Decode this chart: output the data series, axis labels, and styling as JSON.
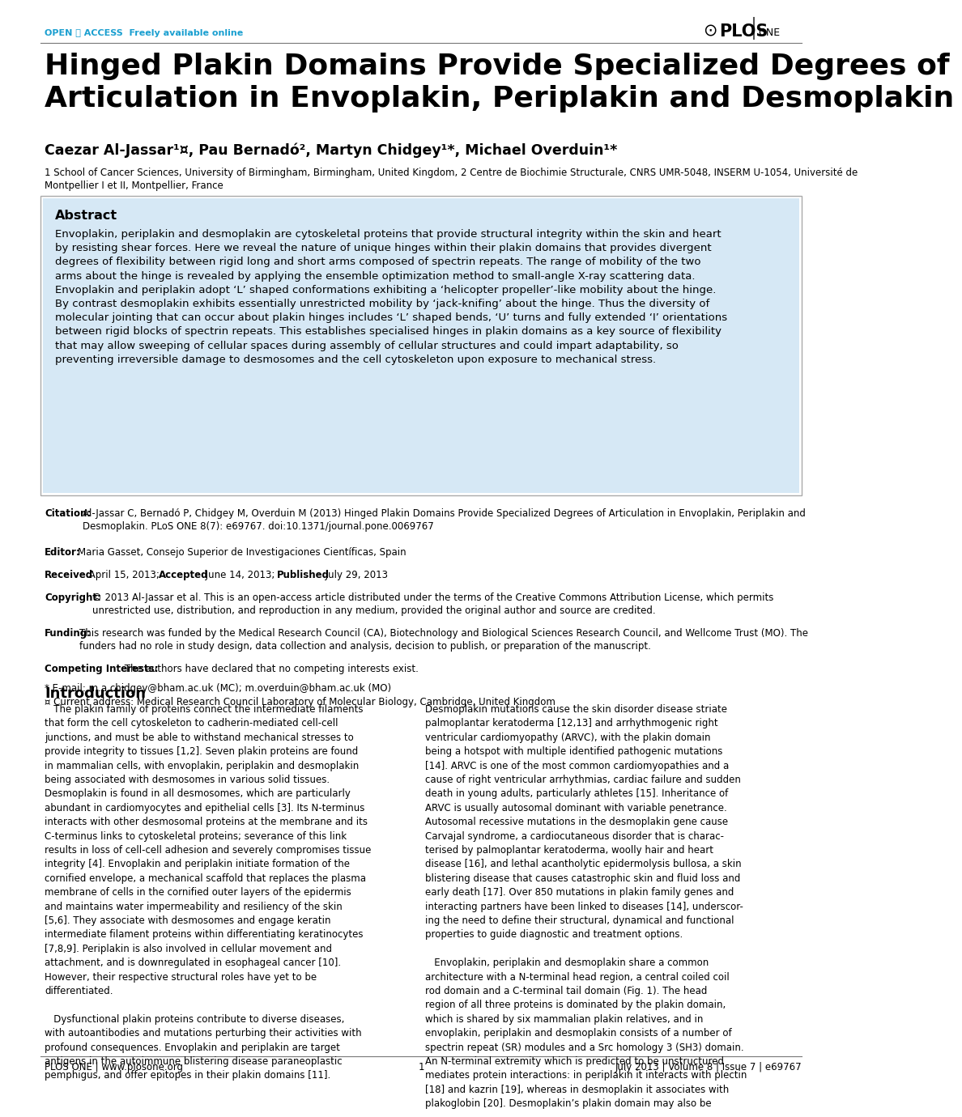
{
  "page_bg": "#ffffff",
  "open_access_text": "OPEN ⚿ ACCESS  Freely available online",
  "open_access_color": "#1a9fd0",
  "title": "Hinged Plakin Domains Provide Specialized Degrees of\nArticulation in Envoplakin, Periplakin and Desmoplakin",
  "title_fontsize": 26,
  "authors": "Caezar Al-Jassar¹¤, Pau Bernadó², Martyn Chidgey¹*, Michael Overduin¹*",
  "authors_fontsize": 12.5,
  "affiliation": "1 School of Cancer Sciences, University of Birmingham, Birmingham, United Kingdom, 2 Centre de Biochimie Structurale, CNRS UMR-5048, INSERM U-1054, Université de\nMontpellier I et II, Montpellier, France",
  "affiliation_fontsize": 8.5,
  "abstract_bg": "#d6e8f5",
  "abstract_title": "Abstract",
  "abstract_text": "Envoplakin, periplakin and desmoplakin are cytoskeletal proteins that provide structural integrity within the skin and heart\nby resisting shear forces. Here we reveal the nature of unique hinges within their plakin domains that provides divergent\ndegrees of flexibility between rigid long and short arms composed of spectrin repeats. The range of mobility of the two\narms about the hinge is revealed by applying the ensemble optimization method to small-angle X-ray scattering data.\nEnvoplakin and periplakin adopt ‘L’ shaped conformations exhibiting a ‘helicopter propeller’-like mobility about the hinge.\nBy contrast desmoplakin exhibits essentially unrestricted mobility by ‘jack-knifing’ about the hinge. Thus the diversity of\nmolecular jointing that can occur about plakin hinges includes ‘L’ shaped bends, ‘U’ turns and fully extended ‘I’ orientations\nbetween rigid blocks of spectrin repeats. This establishes specialised hinges in plakin domains as a key source of flexibility\nthat may allow sweeping of cellular spaces during assembly of cellular structures and could impart adaptability, so\npreventing irreversible damage to desmosomes and the cell cytoskeleton upon exposure to mechanical stress.",
  "abstract_text_fontsize": 9.5,
  "citation_label": "Citation:",
  "citation_text": "Al-Jassar C, Bernadó P, Chidgey M, Overduin M (2013) Hinged Plakin Domains Provide Specialized Degrees of Articulation in Envoplakin, Periplakin and\nDesmoplakin. PLoS ONE 8(7): e69767. doi:10.1371/journal.pone.0069767",
  "editor_label": "Editor:",
  "editor_text": "Maria Gasset, Consejo Superior de Investigaciones Científicas, Spain",
  "received_label": "Received",
  "received_text": " April 15, 2013;",
  "accepted_label": "Accepted",
  "accepted_text": " June 14, 2013;",
  "published_label": "Published",
  "published_text": " July 29, 2013",
  "copyright_label": "Copyright:",
  "copyright_text": "© 2013 Al-Jassar et al. This is an open-access article distributed under the terms of the Creative Commons Attribution License, which permits\nunrestricted use, distribution, and reproduction in any medium, provided the original author and source are credited.",
  "funding_label": "Funding:",
  "funding_text": "This research was funded by the Medical Research Council (CA), Biotechnology and Biological Sciences Research Council, and Wellcome Trust (MO). The\nfunders had no role in study design, data collection and analysis, decision to publish, or preparation of the manuscript.",
  "competing_label": "Competing Interests:",
  "competing_text": " The authors have declared that no competing interests exist.",
  "email_text": "* E-mail: m.a.chidgey@bham.ac.uk (MC); m.overduin@bham.ac.uk (MO)",
  "address_text": "¤ Current address: Medical Research Council Laboratory of Molecular Biology, Cambridge, United Kingdom",
  "intro_title": "Introduction",
  "intro_col1": "   The plakin family of proteins connect the intermediate filaments\nthat form the cell cytoskeleton to cadherin-mediated cell-cell\njunctions, and must be able to withstand mechanical stresses to\nprovide integrity to tissues [1,2]. Seven plakin proteins are found\nin mammalian cells, with envoplakin, periplakin and desmoplakin\nbeing associated with desmosomes in various solid tissues.\nDesmoplakin is found in all desmosomes, which are particularly\nabundant in cardiomyocytes and epithelial cells [3]. Its N-terminus\ninteracts with other desmosomal proteins at the membrane and its\nC-terminus links to cytoskeletal proteins; severance of this link\nresults in loss of cell-cell adhesion and severely compromises tissue\nintegrity [4]. Envoplakin and periplakin initiate formation of the\ncornified envelope, a mechanical scaffold that replaces the plasma\nmembrane of cells in the cornified outer layers of the epidermis\nand maintains water impermeability and resiliency of the skin\n[5,6]. They associate with desmosomes and engage keratin\nintermediate filament proteins within differentiating keratinocytes\n[7,8,9]. Periplakin is also involved in cellular movement and\nattachment, and is downregulated in esophageal cancer [10].\nHowever, their respective structural roles have yet to be\ndifferentiated.\n\n   Dysfunctional plakin proteins contribute to diverse diseases,\nwith autoantibodies and mutations perturbing their activities with\nprofound consequences. Envoplakin and periplakin are target\nantigens in the autoimmune blistering disease paraneoplastic\npemphigus, and offer epitopes in their plakin domains [11].",
  "intro_col2": "Desmoplakin mutations cause the skin disorder disease striate\npalmoplantar keratoderma [12,13] and arrhythmogenic right\nventricular cardiomyopathy (ARVC), with the plakin domain\nbeing a hotspot with multiple identified pathogenic mutations\n[14]. ARVC is one of the most common cardiomyopathies and a\ncause of right ventricular arrhythmias, cardiac failure and sudden\ndeath in young adults, particularly athletes [15]. Inheritance of\nARVC is usually autosomal dominant with variable penetrance.\nAutosomal recessive mutations in the desmoplakin gene cause\nCarvajal syndrome, a cardiocutaneous disorder that is charac-\nterised by palmoplantar keratoderma, woolly hair and heart\ndisease [16], and lethal acantholytic epidermolysis bullosa, a skin\nblistering disease that causes catastrophic skin and fluid loss and\nearly death [17]. Over 850 mutations in plakin family genes and\ninteracting partners have been linked to diseases [14], underscor-\ning the need to define their structural, dynamical and functional\nproperties to guide diagnostic and treatment options.\n\n   Envoplakin, periplakin and desmoplakin share a common\narchitecture with a N-terminal head region, a central coiled coil\nrod domain and a C-terminal tail domain (Fig. 1). The head\nregion of all three proteins is dominated by the plakin domain,\nwhich is shared by six mammalian plakin relatives, and in\nenvoplakin, periplakin and desmoplakin consists of a number of\nspectrin repeat (SR) modules and a Src homology 3 (SH3) domain.\nAn N-terminal extremity which is predicted to be unstructured\nmediates protein interactions: in periplakin it interacts with plectin\n[18] and kazrin [19], whereas in desmoplakin it associates with\nplakoglobin [20]. Desmoplakin’s plakin domain may also be",
  "footer_journal": "PLOS ONE | www.plosone.org",
  "footer_page": "1",
  "footer_date": "July 2013 | Volume 8 | Issue 7 | e69767",
  "meta_fontsize": 8.5,
  "intro_fontsize": 8.5,
  "intro_title_fontsize": 13
}
